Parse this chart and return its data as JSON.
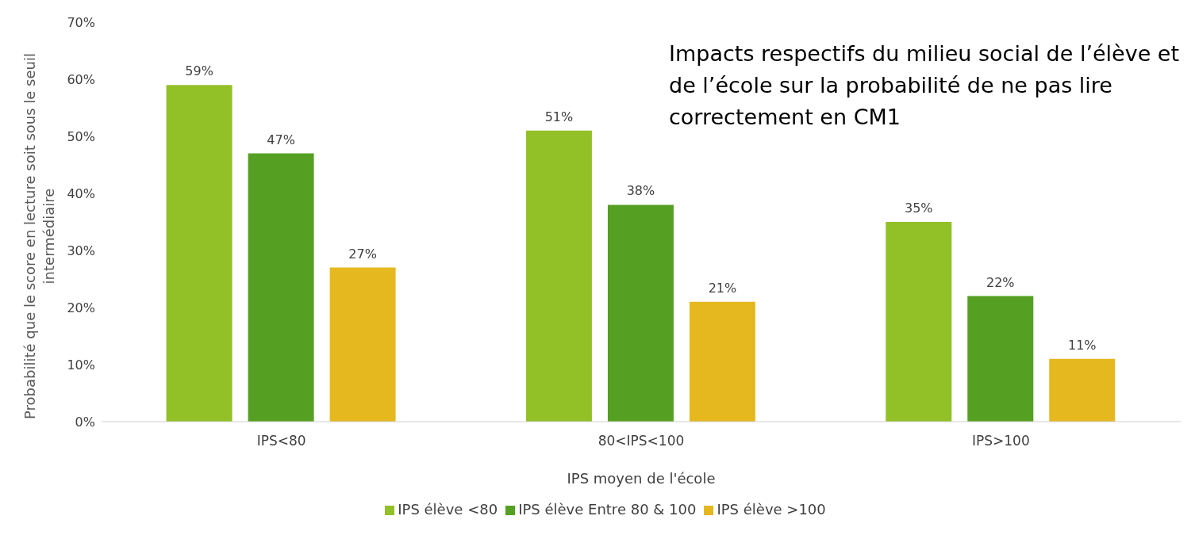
{
  "chart_data": {
    "type": "bar",
    "title": "Impacts respectifs du milieu social de l’élève et de l’école sur la probabilité de ne pas lire correctement en CM1",
    "xlabel": "IPS moyen de l'école",
    "ylabel": "Probabilité que le score en lecture soit sous le seuil intermédiaire",
    "categories": [
      "IPS<80",
      "80<IPS<100",
      "IPS>100"
    ],
    "series": [
      {
        "name": "IPS élève <80",
        "color": "#92c027",
        "values": [
          59,
          51,
          35
        ],
        "value_labels": [
          "59%",
          "51%",
          "35%"
        ]
      },
      {
        "name": "IPS élève Entre 80 & 100",
        "color": "#55a022",
        "values": [
          47,
          38,
          22
        ],
        "value_labels": [
          "47%",
          "38%",
          "22%"
        ]
      },
      {
        "name": "IPS élève >100",
        "color": "#e6b820",
        "values": [
          27,
          21,
          11
        ],
        "value_labels": [
          "27%",
          "21%",
          "11%"
        ]
      }
    ],
    "ylim": [
      0,
      70
    ],
    "yticks": [
      {
        "value": 0,
        "label": "0%"
      },
      {
        "value": 10,
        "label": "10%"
      },
      {
        "value": 20,
        "label": "20%"
      },
      {
        "value": 30,
        "label": "30%"
      },
      {
        "value": 40,
        "label": "40%"
      },
      {
        "value": 50,
        "label": "50%"
      },
      {
        "value": 60,
        "label": "60%"
      },
      {
        "value": 70,
        "label": "70%"
      }
    ],
    "grid": false,
    "legend": "bottom"
  }
}
